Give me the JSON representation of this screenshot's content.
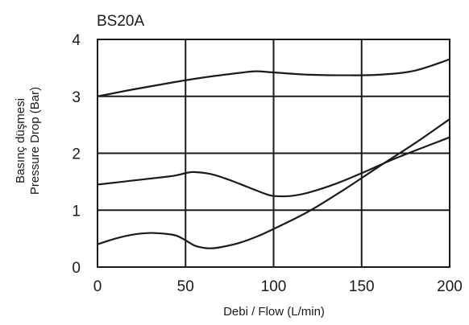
{
  "chart_data": {
    "type": "line",
    "title": "BS20A",
    "xlabel": "Debi / Flow (L/min)",
    "ylabel_line1": "Basınç düşmesi",
    "ylabel_line2": "Pressure Drop (Bar)",
    "xlim": [
      0,
      200
    ],
    "ylim": [
      0,
      4
    ],
    "xticks": [
      "0",
      "50",
      "100",
      "150",
      "200"
    ],
    "yticks": [
      "0",
      "1",
      "2",
      "3",
      "4"
    ],
    "grid": true,
    "legend": "none",
    "series": [
      {
        "x": [
          0,
          20,
          40,
          60,
          80,
          90,
          100,
          120,
          140,
          160,
          180,
          200
        ],
        "y": [
          3.0,
          3.12,
          3.23,
          3.33,
          3.41,
          3.44,
          3.42,
          3.38,
          3.37,
          3.38,
          3.45,
          3.65
        ]
      },
      {
        "x": [
          0,
          20,
          40,
          46,
          50,
          55,
          65,
          75,
          85,
          95,
          100,
          110,
          120,
          135,
          150,
          170,
          200
        ],
        "y": [
          1.45,
          1.52,
          1.59,
          1.62,
          1.65,
          1.67,
          1.63,
          1.53,
          1.41,
          1.29,
          1.25,
          1.25,
          1.31,
          1.46,
          1.65,
          1.92,
          2.28
        ]
      },
      {
        "x": [
          0,
          10,
          20,
          30,
          40,
          45,
          50,
          55,
          60,
          65,
          70,
          80,
          90,
          100,
          120,
          140,
          160,
          180,
          200
        ],
        "y": [
          0.4,
          0.5,
          0.57,
          0.6,
          0.58,
          0.55,
          0.47,
          0.38,
          0.34,
          0.33,
          0.35,
          0.42,
          0.53,
          0.67,
          0.98,
          1.36,
          1.77,
          2.17,
          2.6
        ]
      }
    ]
  }
}
